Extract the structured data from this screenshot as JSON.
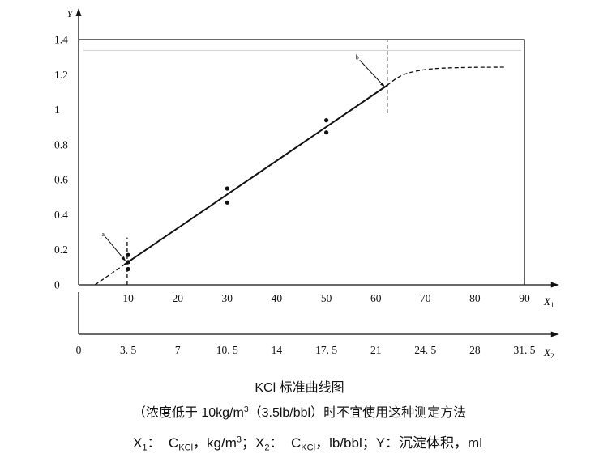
{
  "chart_data": {
    "type": "scatter",
    "title": "KCl 标准曲线图",
    "note": [
      "（浓度低于 10kg/m",
      "3",
      "（3.5lb/bbl）时不宜使用这种测定方法"
    ],
    "axis_legend": [
      "X",
      "1",
      "：  C",
      "KCl",
      "，kg/m",
      "3",
      "；X",
      "2",
      "：  C",
      "KCl",
      "，lb/bbl；Y：沉淀体积，ml"
    ],
    "ylabel": "Y",
    "x1_label": [
      "X",
      "1"
    ],
    "x2_label": [
      "X",
      "2"
    ],
    "xlim": [
      0,
      97
    ],
    "ylim": [
      0,
      1.58
    ],
    "grid": false,
    "color": "#111111",
    "x1_ticks": [
      {
        "value": 10,
        "label": "10"
      },
      {
        "value": 20,
        "label": "20"
      },
      {
        "value": 30,
        "label": "30"
      },
      {
        "value": 40,
        "label": "40"
      },
      {
        "value": 50,
        "label": "50"
      },
      {
        "value": 60,
        "label": "60"
      },
      {
        "value": 70,
        "label": "70"
      },
      {
        "value": 80,
        "label": "80"
      },
      {
        "value": 90,
        "label": "90"
      }
    ],
    "x2_ticks": [
      {
        "value": 0,
        "label": "0"
      },
      {
        "value": 3.5,
        "label": "3. 5"
      },
      {
        "value": 7,
        "label": "7"
      },
      {
        "value": 10.5,
        "label": "10. 5"
      },
      {
        "value": 14,
        "label": "14"
      },
      {
        "value": 17.5,
        "label": "17. 5"
      },
      {
        "value": 21,
        "label": "21"
      },
      {
        "value": 24.5,
        "label": "24. 5"
      },
      {
        "value": 28,
        "label": "28"
      },
      {
        "value": 31.5,
        "label": "31. 5"
      }
    ],
    "y_ticks": [
      {
        "value": 0,
        "label": "0"
      },
      {
        "value": 0.2,
        "label": "0.2"
      },
      {
        "value": 0.4,
        "label": "0.4"
      },
      {
        "value": 0.6,
        "label": "0.6"
      },
      {
        "value": 0.8,
        "label": "0.8"
      },
      {
        "value": 1,
        "label": "1"
      },
      {
        "value": 1.2,
        "label": "1.2"
      },
      {
        "value": 1.4,
        "label": "1.4"
      }
    ],
    "points": [
      [
        10,
        0.17
      ],
      [
        10,
        0.13
      ],
      [
        10,
        0.09
      ],
      [
        30,
        0.55
      ],
      [
        30,
        0.47
      ],
      [
        50,
        0.94
      ],
      [
        50,
        0.87
      ]
    ],
    "calibration_line": [
      [
        9.3,
        0.117
      ],
      [
        62.3,
        1.139
      ]
    ],
    "dashed_lines": [
      [
        [
          3.3,
          0
        ],
        [
          9.3,
          0.117
        ]
      ],
      [
        [
          62.3,
          1.139
        ],
        [
          63,
          1.155
        ],
        [
          64,
          1.176
        ],
        [
          65,
          1.192
        ],
        [
          66,
          1.204
        ],
        [
          67,
          1.213
        ],
        [
          68,
          1.22
        ],
        [
          70,
          1.229
        ],
        [
          72,
          1.235
        ],
        [
          75,
          1.239
        ],
        [
          80,
          1.242
        ],
        [
          86,
          1.243
        ]
      ]
    ],
    "reference_lines": [
      {
        "x": 9.8,
        "y": [
          0,
          0.27
        ]
      },
      {
        "x": 62.3,
        "y": [
          0.98,
          1.4
        ]
      }
    ],
    "annotations": [
      {
        "text": "a",
        "x": 9.5,
        "y": 0.135
      },
      {
        "text": "b",
        "x": 61.8,
        "y": 1.13
      }
    ]
  }
}
